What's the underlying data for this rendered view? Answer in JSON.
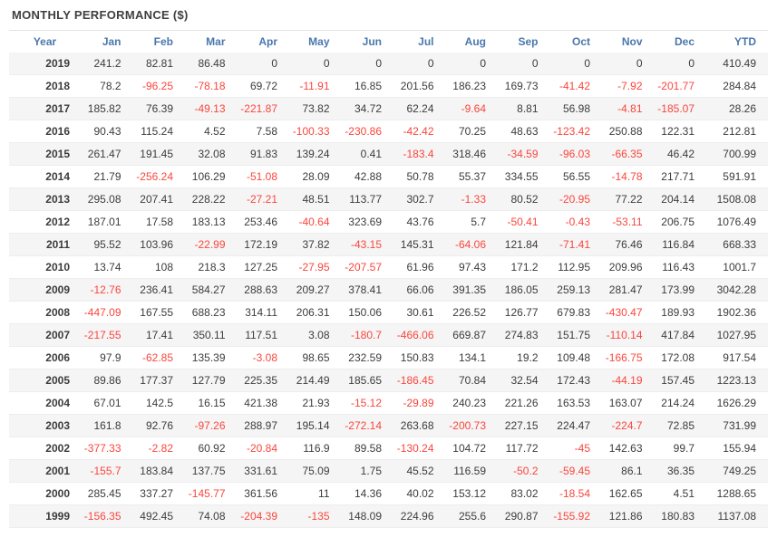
{
  "title": "MONTHLY PERFORMANCE ($)",
  "colors": {
    "title_text": "#3f3f41",
    "header_text": "#4a77ad",
    "value_text": "#3c3c3c",
    "negative_text": "#fa463d",
    "row_stripe": "#f5f5f5",
    "row_border": "#ededed",
    "top_border": "#e2e2e2"
  },
  "chart_data": {
    "type": "table",
    "title": "MONTHLY PERFORMANCE ($)",
    "columns": [
      "Year",
      "Jan",
      "Feb",
      "Mar",
      "Apr",
      "May",
      "Jun",
      "Jul",
      "Aug",
      "Sep",
      "Oct",
      "Nov",
      "Dec",
      "YTD"
    ],
    "layout": {
      "striped": true,
      "first_row_shaded": true,
      "negative_values_red": true
    },
    "rows": [
      {
        "year": "2019",
        "values": [
          241.2,
          82.81,
          86.48,
          0,
          0,
          0,
          0,
          0,
          0,
          0,
          0,
          0,
          410.49
        ]
      },
      {
        "year": "2018",
        "values": [
          78.2,
          -96.25,
          -78.18,
          69.72,
          -11.91,
          16.85,
          201.56,
          186.23,
          169.73,
          -41.42,
          -7.92,
          -201.77,
          284.84
        ]
      },
      {
        "year": "2017",
        "values": [
          185.82,
          76.39,
          -49.13,
          -221.87,
          73.82,
          34.72,
          62.24,
          -9.64,
          8.81,
          56.98,
          -4.81,
          -185.07,
          28.26
        ]
      },
      {
        "year": "2016",
        "values": [
          90.43,
          115.24,
          4.52,
          7.58,
          -100.33,
          -230.86,
          -42.42,
          70.25,
          48.63,
          -123.42,
          250.88,
          122.31,
          212.81
        ]
      },
      {
        "year": "2015",
        "values": [
          261.47,
          191.45,
          32.08,
          91.83,
          139.24,
          0.41,
          -183.4,
          318.46,
          -34.59,
          -96.03,
          -66.35,
          46.42,
          700.99
        ]
      },
      {
        "year": "2014",
        "values": [
          21.79,
          -256.24,
          106.29,
          -51.08,
          28.09,
          42.88,
          50.78,
          55.37,
          334.55,
          56.55,
          -14.78,
          217.71,
          591.91
        ]
      },
      {
        "year": "2013",
        "values": [
          295.08,
          207.41,
          228.22,
          -27.21,
          48.51,
          113.77,
          302.7,
          -1.33,
          80.52,
          -20.95,
          77.22,
          204.14,
          1508.08
        ]
      },
      {
        "year": "2012",
        "values": [
          187.01,
          17.58,
          183.13,
          253.46,
          -40.64,
          323.69,
          43.76,
          5.7,
          -50.41,
          -0.43,
          -53.11,
          206.75,
          1076.49
        ]
      },
      {
        "year": "2011",
        "values": [
          95.52,
          103.96,
          -22.99,
          172.19,
          37.82,
          -43.15,
          145.31,
          -64.06,
          121.84,
          -71.41,
          76.46,
          116.84,
          668.33
        ]
      },
      {
        "year": "2010",
        "values": [
          13.74,
          108,
          218.3,
          127.25,
          -27.95,
          -207.57,
          61.96,
          97.43,
          171.2,
          112.95,
          209.96,
          116.43,
          1001.7
        ]
      },
      {
        "year": "2009",
        "values": [
          -12.76,
          236.41,
          584.27,
          288.63,
          209.27,
          378.41,
          66.06,
          391.35,
          186.05,
          259.13,
          281.47,
          173.99,
          3042.28
        ]
      },
      {
        "year": "2008",
        "values": [
          -447.09,
          167.55,
          688.23,
          314.11,
          206.31,
          150.06,
          30.61,
          226.52,
          126.77,
          679.83,
          -430.47,
          189.93,
          1902.36
        ]
      },
      {
        "year": "2007",
        "values": [
          -217.55,
          17.41,
          350.11,
          117.51,
          3.08,
          -180.7,
          -466.06,
          669.87,
          274.83,
          151.75,
          -110.14,
          417.84,
          1027.95
        ]
      },
      {
        "year": "2006",
        "values": [
          97.9,
          -62.85,
          135.39,
          -3.08,
          98.65,
          232.59,
          150.83,
          134.1,
          19.2,
          109.48,
          -166.75,
          172.08,
          917.54
        ]
      },
      {
        "year": "2005",
        "values": [
          89.86,
          177.37,
          127.79,
          225.35,
          214.49,
          185.65,
          -186.45,
          70.84,
          32.54,
          172.43,
          -44.19,
          157.45,
          1223.13
        ]
      },
      {
        "year": "2004",
        "values": [
          67.01,
          142.5,
          16.15,
          421.38,
          21.93,
          -15.12,
          -29.89,
          240.23,
          221.26,
          163.53,
          163.07,
          214.24,
          1626.29
        ]
      },
      {
        "year": "2003",
        "values": [
          161.8,
          92.76,
          -97.26,
          288.97,
          195.14,
          -272.14,
          263.68,
          -200.73,
          227.15,
          224.47,
          -224.7,
          72.85,
          731.99
        ]
      },
      {
        "year": "2002",
        "values": [
          -377.33,
          -2.82,
          60.92,
          -20.84,
          116.9,
          89.58,
          -130.24,
          104.72,
          117.72,
          -45,
          142.63,
          99.7,
          155.94
        ]
      },
      {
        "year": "2001",
        "values": [
          -155.7,
          183.84,
          137.75,
          331.61,
          75.09,
          1.75,
          45.52,
          116.59,
          -50.2,
          -59.45,
          86.1,
          36.35,
          749.25
        ]
      },
      {
        "year": "2000",
        "values": [
          285.45,
          337.27,
          -145.77,
          361.56,
          11,
          14.36,
          40.02,
          153.12,
          83.02,
          -18.54,
          162.65,
          4.51,
          1288.65
        ]
      },
      {
        "year": "1999",
        "values": [
          -156.35,
          492.45,
          74.08,
          -204.39,
          -135,
          148.09,
          224.96,
          255.6,
          290.87,
          -155.92,
          121.86,
          180.83,
          1137.08
        ]
      }
    ]
  }
}
